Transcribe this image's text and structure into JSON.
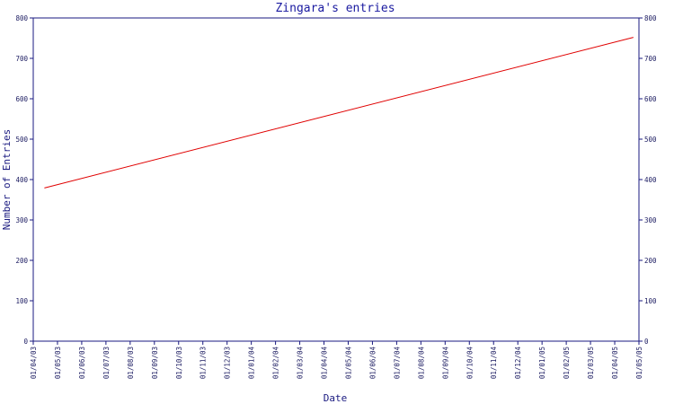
{
  "chart_data": {
    "type": "line",
    "title": "Zingara's entries",
    "xlabel": "Date",
    "ylabel": "Number of Entries",
    "x_ticks": [
      "01/04/03",
      "01/05/03",
      "01/06/03",
      "01/07/03",
      "01/08/03",
      "01/09/03",
      "01/10/03",
      "01/11/03",
      "01/12/03",
      "01/01/04",
      "01/02/04",
      "01/03/04",
      "01/04/04",
      "01/05/04",
      "01/06/04",
      "01/07/04",
      "01/08/04",
      "01/09/04",
      "01/10/04",
      "01/11/04",
      "01/12/04",
      "01/01/05",
      "01/02/05",
      "01/03/05",
      "01/04/05",
      "01/05/05"
    ],
    "y_ticks": [
      0,
      100,
      200,
      300,
      400,
      500,
      600,
      700,
      800
    ],
    "ylim": [
      0,
      800
    ],
    "grid": false,
    "series": [
      {
        "x": [
          "2003-04-15",
          "2005-04-24"
        ],
        "values": [
          379,
          752
        ]
      }
    ],
    "colors": {
      "axis": "#1a1a80",
      "line": "#e00000",
      "title": "#1a1aa0"
    }
  }
}
